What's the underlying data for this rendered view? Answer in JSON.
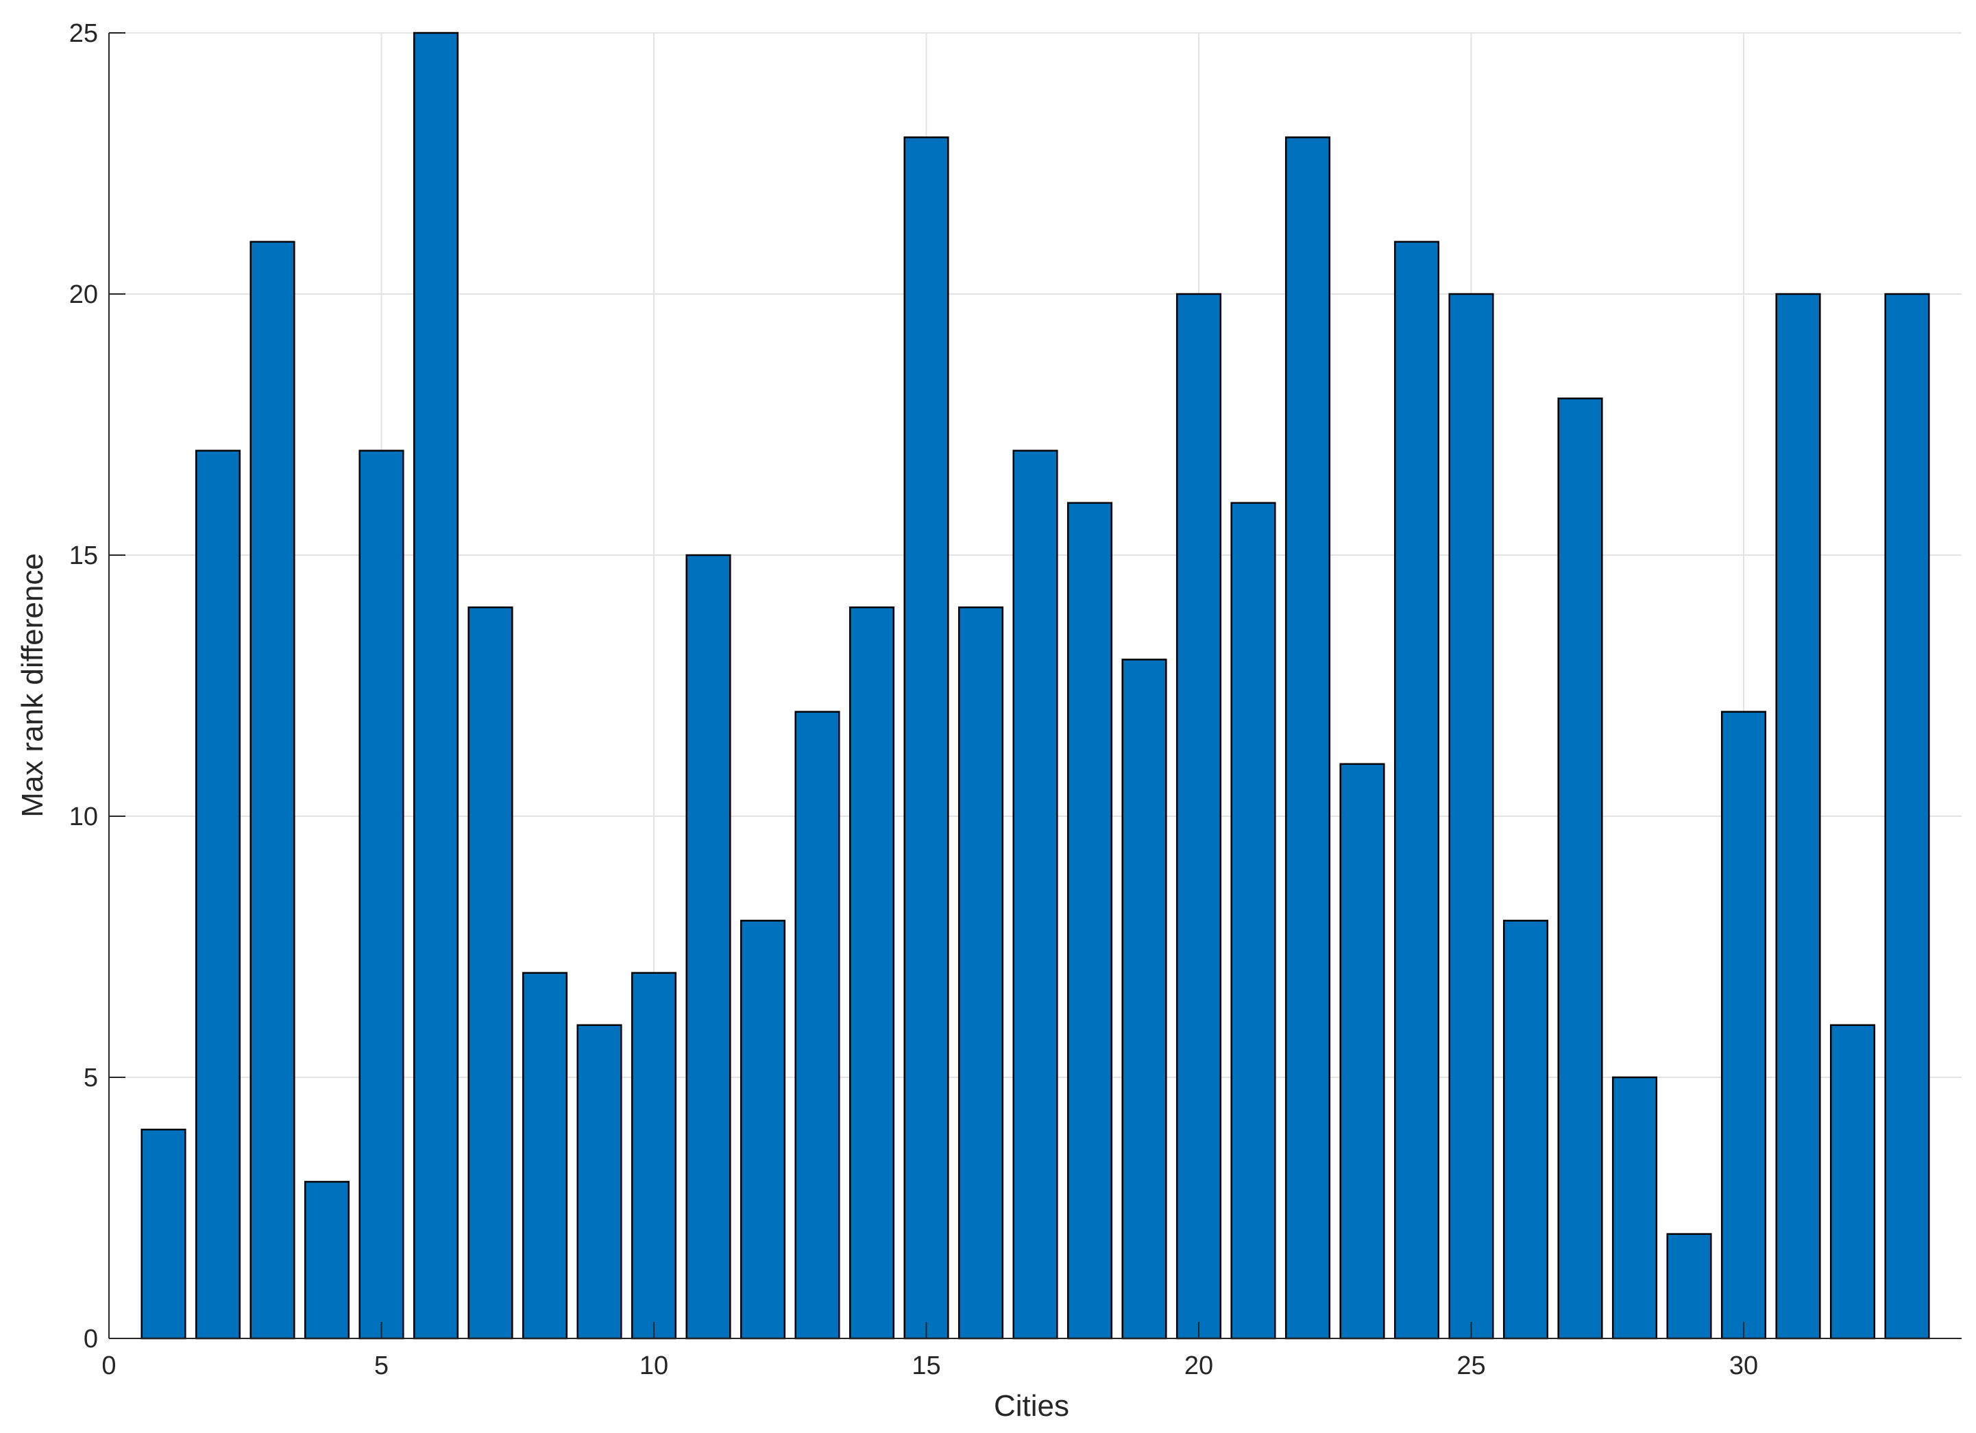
{
  "chart_data": {
    "type": "bar",
    "title": "",
    "xlabel": "Cities",
    "ylabel": "Max rank difference",
    "xlim": [
      0,
      34
    ],
    "ylim": [
      0,
      25
    ],
    "xticks": [
      0,
      5,
      10,
      15,
      20,
      25,
      30
    ],
    "yticks": [
      0,
      5,
      10,
      15,
      20,
      25
    ],
    "grid": true,
    "bar_color": "#0072BD",
    "bar_edge_color": "#000000",
    "x": [
      1,
      2,
      3,
      4,
      5,
      6,
      7,
      8,
      9,
      10,
      11,
      12,
      13,
      14,
      15,
      16,
      17,
      18,
      19,
      20,
      21,
      22,
      23,
      24,
      25,
      26,
      27,
      28,
      29,
      30,
      31,
      32,
      33
    ],
    "values": [
      4,
      17,
      21,
      3,
      17,
      25,
      14,
      7,
      6,
      7,
      15,
      8,
      12,
      14,
      23,
      14,
      17,
      16,
      13,
      20,
      16,
      23,
      11,
      21,
      20,
      8,
      18,
      5,
      2,
      12,
      20,
      6,
      20
    ]
  }
}
